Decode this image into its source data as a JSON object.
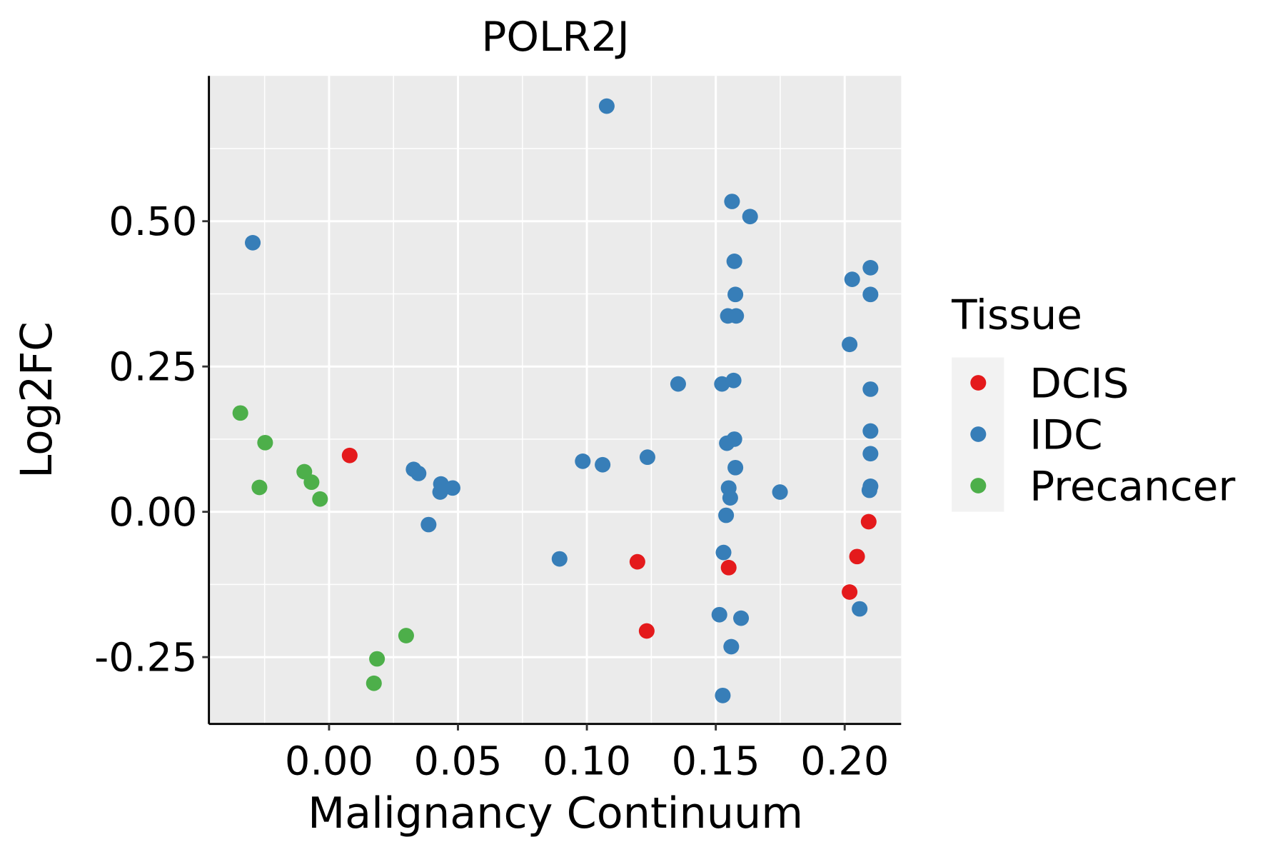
{
  "chart_data": {
    "type": "scatter",
    "title": "POLR2J",
    "xlabel": "Malignancy Continuum",
    "ylabel": "Log2FC",
    "xlim": [
      -0.0466,
      0.2219
    ],
    "ylim": [
      -0.365,
      0.75
    ],
    "xticks": [
      0.0,
      0.05,
      0.1,
      0.15,
      0.2
    ],
    "xtick_labels": [
      "0.00",
      "0.05",
      "0.10",
      "0.15",
      "0.20"
    ],
    "yticks": [
      -0.25,
      0.0,
      0.25,
      0.5
    ],
    "ytick_labels": [
      "-0.25",
      "0.00",
      "0.25",
      "0.50"
    ],
    "grid": true,
    "legend": {
      "title": "Tissue",
      "position": "right",
      "entries": [
        "DCIS",
        "IDC",
        "Precancer"
      ]
    },
    "colors": {
      "DCIS": "#E41A1C",
      "IDC": "#377EB8",
      "Precancer": "#4DAF4A",
      "panel": "#EBEBEB",
      "legend_key": "#F2F2F2"
    },
    "series": [
      {
        "name": "DCIS",
        "points": [
          [
            0.008,
            0.097
          ],
          [
            0.1196,
            -0.086
          ],
          [
            0.155,
            -0.096
          ],
          [
            0.1232,
            -0.205
          ],
          [
            0.2093,
            -0.017
          ],
          [
            0.2048,
            -0.077
          ],
          [
            0.2019,
            -0.138
          ]
        ]
      },
      {
        "name": "IDC",
        "points": [
          [
            0.1077,
            0.698
          ],
          [
            -0.0296,
            0.463
          ],
          [
            0.1563,
            0.534
          ],
          [
            0.1633,
            0.508
          ],
          [
            0.1572,
            0.431
          ],
          [
            0.1576,
            0.374
          ],
          [
            0.1547,
            0.337
          ],
          [
            0.1579,
            0.337
          ],
          [
            0.2029,
            0.4
          ],
          [
            0.21,
            0.42
          ],
          [
            0.21,
            0.374
          ],
          [
            0.2019,
            0.288
          ],
          [
            0.21,
            0.211
          ],
          [
            0.1354,
            0.22
          ],
          [
            0.1524,
            0.22
          ],
          [
            0.1569,
            0.226
          ],
          [
            0.21,
            0.139
          ],
          [
            0.1572,
            0.125
          ],
          [
            0.1543,
            0.118
          ],
          [
            0.21,
            0.1
          ],
          [
            0.1576,
            0.076
          ],
          [
            0.1235,
            0.094
          ],
          [
            0.0984,
            0.087
          ],
          [
            0.1061,
            0.081
          ],
          [
            0.0328,
            0.073
          ],
          [
            0.0347,
            0.066
          ],
          [
            0.0434,
            0.048
          ],
          [
            0.0479,
            0.041
          ],
          [
            0.0431,
            0.034
          ],
          [
            0.155,
            0.041
          ],
          [
            0.1556,
            0.024
          ],
          [
            0.1749,
            0.034
          ],
          [
            0.21,
            0.044
          ],
          [
            0.2096,
            0.037
          ],
          [
            0.154,
            -0.006
          ],
          [
            0.0386,
            -0.022
          ],
          [
            0.0894,
            -0.081
          ],
          [
            0.153,
            -0.07
          ],
          [
            0.1514,
            -0.177
          ],
          [
            0.1598,
            -0.183
          ],
          [
            0.156,
            -0.232
          ],
          [
            0.2058,
            -0.167
          ],
          [
            0.1527,
            -0.316
          ]
        ]
      },
      {
        "name": "Precancer",
        "points": [
          [
            -0.0344,
            0.17
          ],
          [
            -0.0248,
            0.119
          ],
          [
            -0.027,
            0.042
          ],
          [
            -0.0096,
            0.069
          ],
          [
            -0.0068,
            0.051
          ],
          [
            -0.0035,
            0.022
          ],
          [
            0.0299,
            -0.213
          ],
          [
            0.0186,
            -0.253
          ],
          [
            0.0174,
            -0.295
          ]
        ]
      }
    ]
  }
}
